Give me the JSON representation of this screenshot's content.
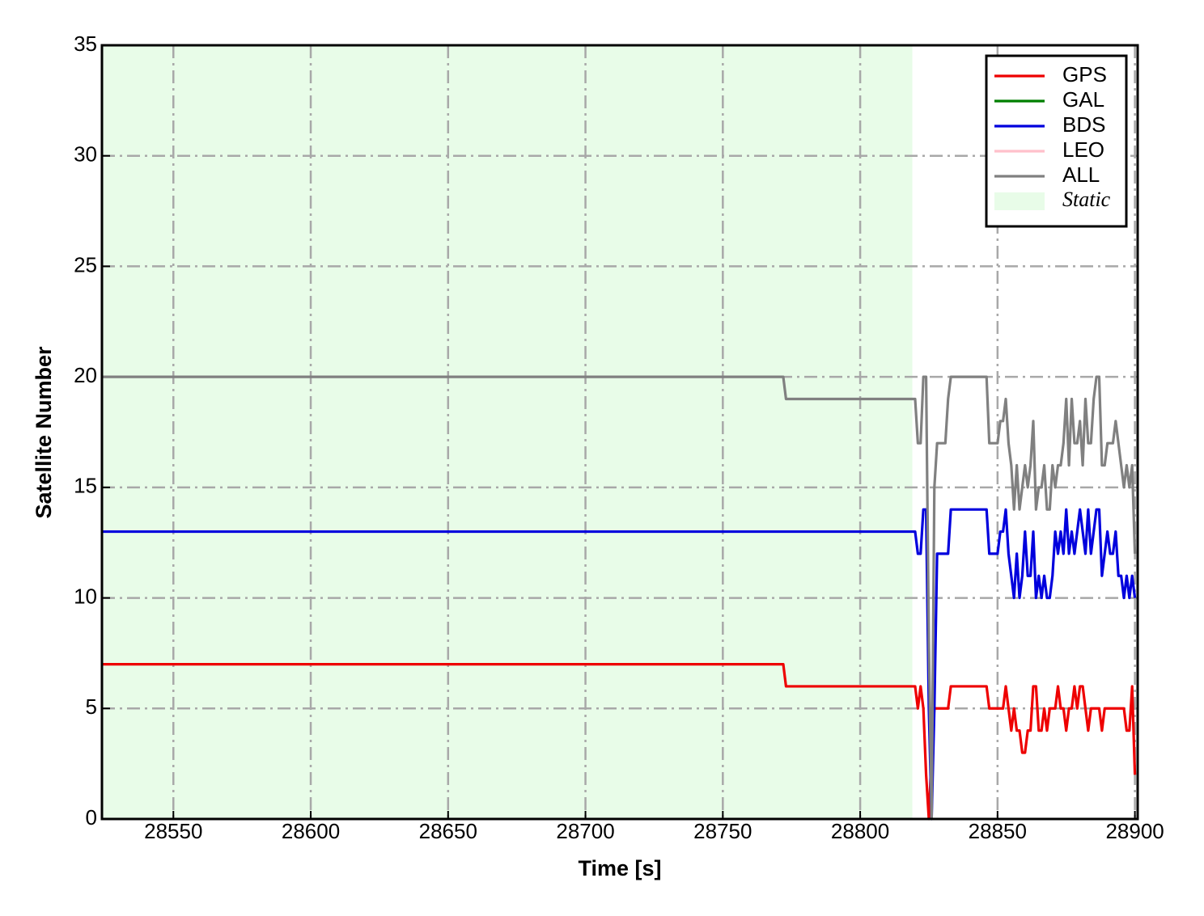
{
  "chart_data": {
    "type": "line",
    "xlabel": "Time [s]",
    "ylabel": "Satellite Number",
    "xlim": [
      28524,
      28901
    ],
    "ylim": [
      0,
      35
    ],
    "xticks": [
      28550,
      28600,
      28650,
      28700,
      28750,
      28800,
      28850,
      28900
    ],
    "yticks": [
      0,
      5,
      10,
      15,
      20,
      25,
      30,
      35
    ],
    "grid": true,
    "legend": "upper right",
    "static": {
      "label": "Static",
      "xlim": [
        28524,
        28819
      ],
      "color": "#e8fce8"
    },
    "x": [
      28524,
      28772,
      28773,
      28818,
      28819,
      28820,
      28821,
      28822,
      28823,
      28824,
      28825,
      28826,
      28827,
      28828,
      28829,
      28830,
      28831,
      28832,
      28833,
      28834,
      28835,
      28836,
      28837,
      28838,
      28839,
      28840,
      28841,
      28842,
      28843,
      28844,
      28845,
      28846,
      28847,
      28848,
      28849,
      28850,
      28851,
      28852,
      28853,
      28854,
      28855,
      28856,
      28857,
      28858,
      28859,
      28860,
      28861,
      28862,
      28863,
      28864,
      28865,
      28866,
      28867,
      28868,
      28869,
      28870,
      28871,
      28872,
      28873,
      28874,
      28875,
      28876,
      28877,
      28878,
      28879,
      28880,
      28881,
      28882,
      28883,
      28884,
      28885,
      28886,
      28887,
      28888,
      28889,
      28890,
      28891,
      28892,
      28893,
      28894,
      28895,
      28896,
      28897,
      28898,
      28899,
      28900
    ],
    "series": [
      {
        "name": "GPS",
        "color": "#ee0000",
        "values": [
          7,
          7,
          6,
          6,
          6,
          6,
          5,
          6,
          5,
          2,
          0,
          3,
          5,
          5,
          5,
          5,
          5,
          5,
          6,
          6,
          6,
          6,
          6,
          6,
          6,
          6,
          6,
          6,
          6,
          6,
          6,
          6,
          5,
          5,
          5,
          5,
          5,
          5,
          6,
          5,
          4,
          5,
          4,
          4,
          3,
          3,
          4,
          4,
          6,
          6,
          4,
          4,
          5,
          4,
          5,
          5,
          5,
          6,
          5,
          5,
          4,
          5,
          5,
          6,
          5,
          6,
          6,
          5,
          4,
          5,
          5,
          5,
          5,
          4,
          5,
          5,
          5,
          5,
          5,
          5,
          5,
          5,
          4,
          4,
          6,
          2
        ]
      },
      {
        "name": "GAL",
        "color": "#007f00",
        "values": [
          null,
          null,
          null,
          null,
          null,
          null,
          null,
          null,
          null,
          null,
          null,
          null,
          null,
          null,
          null,
          null,
          null,
          null,
          null,
          null,
          null,
          null,
          null,
          null,
          null,
          null,
          null,
          null,
          null,
          null,
          null,
          null,
          null,
          null,
          null,
          null,
          null,
          null,
          null,
          null,
          null,
          null,
          null,
          null,
          null,
          null,
          null,
          null,
          null,
          null,
          null,
          null,
          null,
          null,
          null,
          null,
          null,
          null,
          null,
          null,
          null,
          null,
          null,
          null,
          null,
          null,
          null,
          null,
          null,
          null,
          null,
          null,
          null,
          null,
          null,
          null,
          null,
          null,
          null,
          null,
          null,
          null,
          null,
          null,
          null,
          null
        ]
      },
      {
        "name": "BDS",
        "color": "#0000dd",
        "values": [
          13,
          13,
          13,
          13,
          13,
          13,
          12,
          12,
          14,
          14,
          5,
          0,
          5,
          12,
          12,
          12,
          12,
          12,
          14,
          14,
          14,
          14,
          14,
          14,
          14,
          14,
          14,
          14,
          14,
          14,
          14,
          14,
          12,
          12,
          12,
          12,
          13,
          13,
          14,
          12,
          11,
          10,
          12,
          10,
          11,
          13,
          11,
          11,
          13,
          10,
          11,
          10,
          11,
          10,
          10,
          11,
          13,
          12,
          13,
          12,
          14,
          12,
          13,
          12,
          13,
          14,
          13,
          12,
          14,
          12,
          13,
          14,
          14,
          11,
          12,
          13,
          12,
          12,
          13,
          11,
          11,
          10,
          11,
          10,
          11,
          10
        ]
      },
      {
        "name": "LEO",
        "color": "#ffc0cb",
        "values": [
          null,
          null,
          null,
          null,
          null,
          null,
          null,
          null,
          null,
          null,
          null,
          null,
          null,
          null,
          null,
          null,
          null,
          null,
          null,
          null,
          null,
          null,
          null,
          null,
          null,
          null,
          null,
          null,
          null,
          null,
          null,
          null,
          null,
          null,
          null,
          null,
          null,
          null,
          null,
          null,
          null,
          null,
          null,
          null,
          null,
          null,
          null,
          null,
          null,
          null,
          null,
          null,
          null,
          null,
          null,
          null,
          null,
          null,
          null,
          null,
          null,
          null,
          null,
          null,
          null,
          null,
          null,
          null,
          null,
          null,
          null,
          null,
          null,
          null,
          null,
          null,
          null,
          null,
          null,
          null,
          null,
          null,
          null,
          null,
          null,
          null
        ]
      },
      {
        "name": "ALL",
        "color": "#808080",
        "values": [
          20,
          20,
          19,
          19,
          19,
          19,
          17,
          17,
          20,
          20,
          8,
          0,
          15,
          17,
          17,
          17,
          17,
          19,
          20,
          20,
          20,
          20,
          20,
          20,
          20,
          20,
          20,
          20,
          20,
          20,
          20,
          20,
          17,
          17,
          17,
          17,
          18,
          18,
          19,
          17,
          16,
          14,
          16,
          14,
          15,
          16,
          15,
          16,
          18,
          14,
          15,
          15,
          16,
          14,
          14,
          16,
          15,
          16,
          16,
          17,
          19,
          16,
          19,
          17,
          17,
          18,
          16,
          19,
          17,
          17,
          19,
          20,
          20,
          16,
          16,
          17,
          17,
          17,
          18,
          17,
          16,
          15,
          16,
          15,
          16,
          12
        ]
      }
    ]
  }
}
